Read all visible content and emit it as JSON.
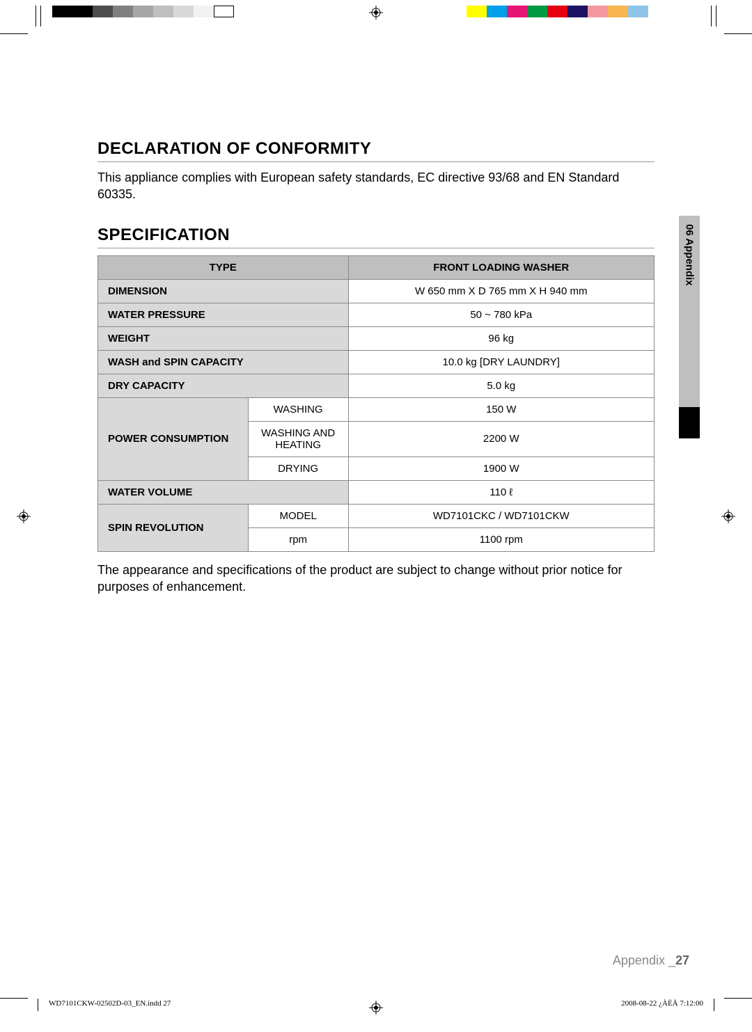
{
  "reg_marks": {
    "gray_swatches": [
      "#000000",
      "#000000",
      "#4d4d4d",
      "#808080",
      "#a6a6a6",
      "#bfbfbf",
      "#d9d9d9",
      "#f2f2f2",
      "#ffffff"
    ],
    "color_swatches": [
      "#ffff00",
      "#00a0e9",
      "#e61673",
      "#009944",
      "#e60012",
      "#1b1464",
      "#f5989d",
      "#f8b551",
      "#8dc6e8"
    ]
  },
  "declaration": {
    "title": "DECLARATION OF CONFORMITY",
    "body": "This appliance complies with European safety standards, EC directive 93/68 and EN Standard 60335."
  },
  "specification": {
    "title": "SPECIFICATION",
    "header": {
      "left": "TYPE",
      "right": "FRONT LOADING WASHER"
    },
    "rows": {
      "dimension": {
        "label": "DIMENSION",
        "value": "W 650 mm X D 765 mm X H 940 mm"
      },
      "water_pressure": {
        "label": "WATER PRESSURE",
        "value": "50 ~ 780 kPa"
      },
      "weight": {
        "label": "WEIGHT",
        "value": "96 kg"
      },
      "wash_spin_cap": {
        "label": "WASH and SPIN CAPACITY",
        "value": "10.0 kg [DRY LAUNDRY]"
      },
      "dry_capacity": {
        "label": "DRY CAPACITY",
        "value": "5.0 kg"
      },
      "power": {
        "label": "POWER CONSUMPTION",
        "sub": [
          {
            "label": "WASHING",
            "value": "150 W"
          },
          {
            "label": "WASHING AND HEATING",
            "value": "2200 W"
          },
          {
            "label": "DRYING",
            "value": "1900 W"
          }
        ]
      },
      "water_volume": {
        "label": "WATER VOLUME",
        "value": "110 ℓ"
      },
      "spin": {
        "label": "SPIN REVOLUTION",
        "sub": [
          {
            "label": "MODEL",
            "value": "WD7101CKC / WD7101CKW"
          },
          {
            "label": "rpm",
            "value": "1100 rpm"
          }
        ]
      }
    },
    "note": "The appearance and specifications of the product are subject to change without prior notice for purposes of enhancement."
  },
  "side_tab": {
    "text": "06 Appendix"
  },
  "footer": {
    "label": "Appendix _",
    "page_number": "27"
  },
  "imprint": {
    "left": "WD7101CKW-02502D-03_EN.indd   27",
    "right": "2008-08-22   ¿ÀÈÄ 7:12:00"
  }
}
